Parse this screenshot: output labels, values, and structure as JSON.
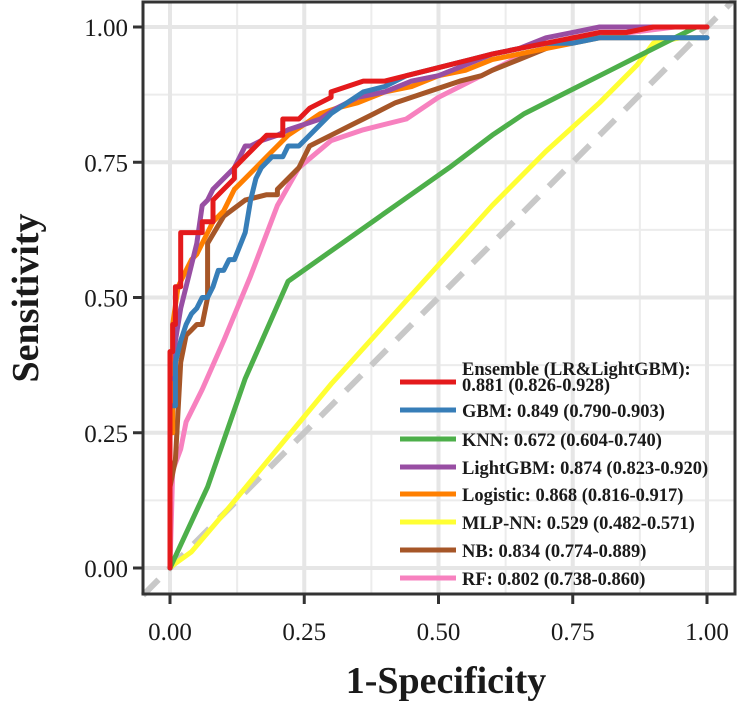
{
  "chart_data": {
    "type": "line",
    "title": "",
    "xlabel": "1-Specificity",
    "ylabel": "Sensitivity",
    "xlim": [
      0,
      1
    ],
    "ylim": [
      0,
      1
    ],
    "x_ticks": [
      "0.00",
      "0.25",
      "0.50",
      "0.75",
      "1.00"
    ],
    "y_ticks": [
      "0.00",
      "0.25",
      "0.50",
      "0.75",
      "1.00"
    ],
    "grid": true,
    "legend_position": "bottom-right",
    "reference_line": {
      "from": [
        0,
        0
      ],
      "to": [
        1,
        1
      ],
      "style": "dashed",
      "color": "#c8c8c8"
    },
    "series": [
      {
        "name": "Ensemble (LR&LightGBM):",
        "label_line2": "0.881 (0.826-0.928)",
        "color": "#e41a1c",
        "x": [
          0,
          0,
          0.005,
          0.005,
          0.01,
          0.01,
          0.02,
          0.02,
          0.04,
          0.06,
          0.06,
          0.08,
          0.08,
          0.1,
          0.12,
          0.12,
          0.14,
          0.16,
          0.18,
          0.2,
          0.21,
          0.21,
          0.24,
          0.26,
          0.28,
          0.3,
          0.3,
          0.33,
          0.36,
          0.4,
          0.44,
          0.48,
          0.52,
          0.56,
          0.6,
          0.65,
          0.7,
          0.75,
          0.8,
          0.85,
          0.9,
          0.95,
          1
        ],
        "y": [
          0,
          0.4,
          0.4,
          0.45,
          0.45,
          0.52,
          0.52,
          0.62,
          0.62,
          0.62,
          0.64,
          0.64,
          0.68,
          0.7,
          0.72,
          0.74,
          0.76,
          0.78,
          0.8,
          0.8,
          0.8,
          0.83,
          0.83,
          0.85,
          0.86,
          0.87,
          0.88,
          0.89,
          0.9,
          0.9,
          0.91,
          0.92,
          0.93,
          0.94,
          0.95,
          0.96,
          0.97,
          0.98,
          0.99,
          0.99,
          1,
          1,
          1
        ]
      },
      {
        "name": "GBM: 0.849 (0.790-0.903)",
        "color": "#377eb8",
        "x": [
          0,
          0,
          0.01,
          0.01,
          0.02,
          0.03,
          0.04,
          0.05,
          0.06,
          0.07,
          0.08,
          0.09,
          0.1,
          0.11,
          0.12,
          0.14,
          0.15,
          0.16,
          0.17,
          0.19,
          0.21,
          0.22,
          0.24,
          0.26,
          0.28,
          0.3,
          0.33,
          0.36,
          0.4,
          0.44,
          0.48,
          0.52,
          0.56,
          0.6,
          0.65,
          0.7,
          0.75,
          0.8,
          0.85,
          0.9,
          0.95,
          1
        ],
        "y": [
          0,
          0.3,
          0.3,
          0.38,
          0.42,
          0.45,
          0.47,
          0.48,
          0.5,
          0.5,
          0.52,
          0.55,
          0.55,
          0.57,
          0.57,
          0.62,
          0.68,
          0.72,
          0.74,
          0.76,
          0.76,
          0.78,
          0.78,
          0.8,
          0.82,
          0.84,
          0.86,
          0.88,
          0.89,
          0.91,
          0.92,
          0.93,
          0.94,
          0.95,
          0.96,
          0.97,
          0.97,
          0.98,
          0.98,
          0.98,
          0.98,
          0.98
        ]
      },
      {
        "name": "KNN: 0.672 (0.604-0.740)",
        "color": "#4daf4a",
        "x": [
          0,
          0.07,
          0.14,
          0.22,
          0.32,
          0.42,
          0.52,
          0.6,
          0.66,
          0.74,
          0.82,
          0.9,
          0.98
        ],
        "y": [
          0,
          0.15,
          0.35,
          0.53,
          0.6,
          0.67,
          0.74,
          0.8,
          0.84,
          0.88,
          0.92,
          0.96,
          1
        ]
      },
      {
        "name": "LightGBM: 0.874 (0.823-0.920)",
        "color": "#984ea3",
        "x": [
          0,
          0,
          0.01,
          0.01,
          0.02,
          0.03,
          0.05,
          0.06,
          0.07,
          0.08,
          0.1,
          0.12,
          0.14,
          0.15,
          0.17,
          0.2,
          0.22,
          0.25,
          0.28,
          0.31,
          0.35,
          0.4,
          0.45,
          0.5,
          0.55,
          0.6,
          0.65,
          0.7,
          0.75,
          0.8,
          0.85,
          0.9,
          0.95,
          1
        ],
        "y": [
          0,
          0.35,
          0.35,
          0.42,
          0.48,
          0.52,
          0.6,
          0.67,
          0.68,
          0.7,
          0.72,
          0.74,
          0.78,
          0.78,
          0.79,
          0.8,
          0.81,
          0.82,
          0.83,
          0.85,
          0.87,
          0.88,
          0.9,
          0.91,
          0.93,
          0.95,
          0.96,
          0.98,
          0.99,
          1,
          1,
          1,
          1,
          1
        ]
      },
      {
        "name": "Logistic: 0.868 (0.816-0.917)",
        "color": "#ff7f00",
        "x": [
          0,
          0,
          0.005,
          0.005,
          0.015,
          0.02,
          0.03,
          0.04,
          0.05,
          0.06,
          0.08,
          0.1,
          0.12,
          0.14,
          0.16,
          0.18,
          0.2,
          0.22,
          0.25,
          0.28,
          0.31,
          0.35,
          0.4,
          0.45,
          0.5,
          0.55,
          0.6,
          0.65,
          0.7,
          0.75,
          0.8,
          0.85,
          0.9,
          0.95,
          1
        ],
        "y": [
          0,
          0.25,
          0.25,
          0.45,
          0.52,
          0.53,
          0.55,
          0.57,
          0.58,
          0.6,
          0.64,
          0.66,
          0.7,
          0.72,
          0.74,
          0.76,
          0.78,
          0.8,
          0.82,
          0.84,
          0.85,
          0.86,
          0.88,
          0.89,
          0.91,
          0.92,
          0.94,
          0.95,
          0.96,
          0.97,
          0.98,
          0.99,
          1,
          1,
          1
        ]
      },
      {
        "name": "MLP-NN: 0.529 (0.482-0.571)",
        "color": "#ffff33",
        "x": [
          0,
          0.005,
          0.04,
          0.1,
          0.2,
          0.3,
          0.4,
          0.5,
          0.6,
          0.7,
          0.8,
          0.87,
          0.9,
          0.95,
          0.98
        ],
        "y": [
          0,
          0.005,
          0.03,
          0.1,
          0.22,
          0.34,
          0.45,
          0.56,
          0.67,
          0.77,
          0.86,
          0.93,
          0.97,
          0.98,
          0.98
        ]
      },
      {
        "name": "NB: 0.834 (0.774-0.889)",
        "color": "#a65628",
        "x": [
          0,
          0,
          0.01,
          0.02,
          0.03,
          0.04,
          0.05,
          0.06,
          0.07,
          0.07,
          0.1,
          0.14,
          0.18,
          0.2,
          0.2,
          0.24,
          0.26,
          0.3,
          0.34,
          0.38,
          0.42,
          0.48,
          0.54,
          0.58,
          0.6,
          0.65,
          0.7,
          0.75,
          0.8,
          0.85,
          0.9,
          0.95,
          1
        ],
        "y": [
          0,
          0.15,
          0.2,
          0.38,
          0.43,
          0.44,
          0.45,
          0.45,
          0.5,
          0.6,
          0.65,
          0.68,
          0.69,
          0.69,
          0.7,
          0.74,
          0.78,
          0.8,
          0.82,
          0.84,
          0.86,
          0.88,
          0.9,
          0.91,
          0.92,
          0.94,
          0.96,
          0.98,
          0.98,
          0.98,
          0.98,
          0.98,
          0.98
        ]
      },
      {
        "name": "RF: 0.802 (0.738-0.860)",
        "color": "#f781bf",
        "x": [
          0,
          0.005,
          0.02,
          0.03,
          0.06,
          0.1,
          0.15,
          0.2,
          0.24,
          0.3,
          0.36,
          0.44,
          0.5,
          0.58,
          0.66,
          0.76,
          0.86,
          0.94,
          1
        ],
        "y": [
          0,
          0.18,
          0.22,
          0.27,
          0.33,
          0.42,
          0.54,
          0.67,
          0.74,
          0.79,
          0.81,
          0.83,
          0.87,
          0.91,
          0.95,
          0.98,
          0.99,
          1,
          1
        ]
      }
    ]
  }
}
